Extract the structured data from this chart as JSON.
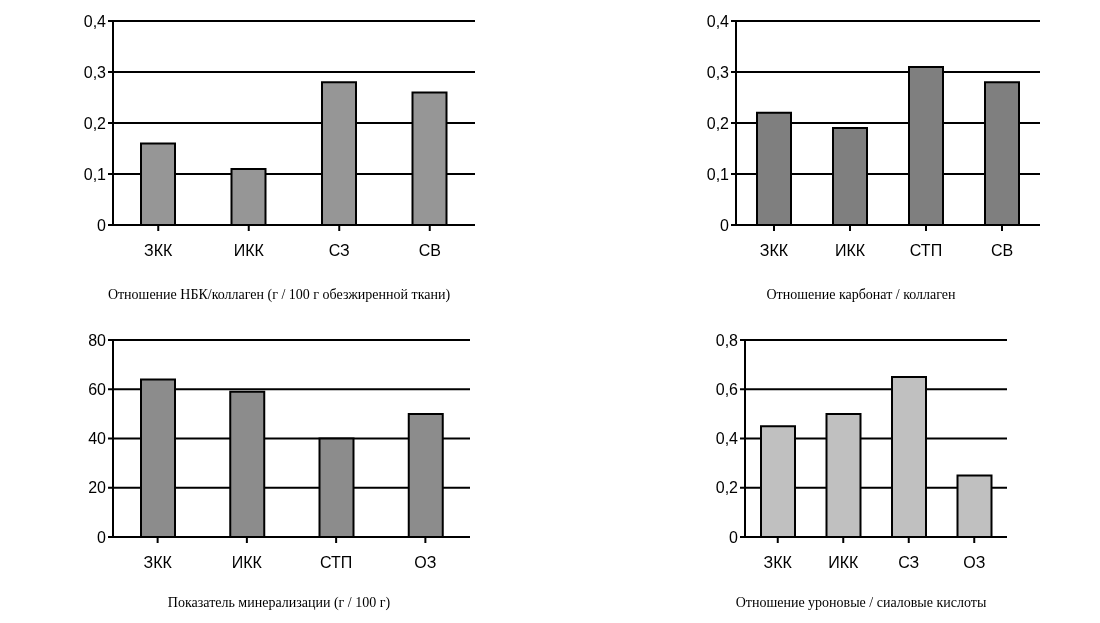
{
  "chart_data": [
    {
      "type": "bar",
      "title": "Отношение НБК/коллаген (г / 100 г обезжиренной ткани)",
      "categories": [
        "ЗКК",
        "ИКК",
        "СЗ",
        "СВ"
      ],
      "values": [
        0.16,
        0.11,
        0.28,
        0.26
      ],
      "color": "#969696",
      "ylim": [
        0,
        0.4
      ],
      "yticks": [
        0,
        {
          "value": 0.1,
          "label": "0,1"
        },
        {
          "value": 0.2,
          "label": "0,2"
        },
        {
          "value": 0.3,
          "label": "0,3"
        },
        {
          "value": 0.4,
          "label": "0,4"
        }
      ],
      "grid": "y"
    },
    {
      "type": "bar",
      "title": "Отношение карбонат / коллаген",
      "categories": [
        "ЗКК",
        "ИКК",
        "СТП",
        "СВ"
      ],
      "values": [
        0.22,
        0.19,
        0.31,
        0.28
      ],
      "color": "#7f7f7f",
      "ylim": [
        0,
        0.4
      ],
      "yticks": [
        0,
        {
          "value": 0.1,
          "label": "0,1"
        },
        {
          "value": 0.2,
          "label": "0,2"
        },
        {
          "value": 0.3,
          "label": "0,3"
        },
        {
          "value": 0.4,
          "label": "0,4"
        }
      ],
      "grid": "y"
    },
    {
      "type": "bar",
      "title": "Показатель минерализации (г / 100 г)",
      "categories": [
        "ЗКК",
        "ИКК",
        "СТП",
        "ОЗ"
      ],
      "values": [
        64,
        59,
        40,
        50
      ],
      "color": "#8c8c8c",
      "ylim": [
        0,
        80
      ],
      "yticks": [
        0,
        20,
        40,
        60,
        80
      ],
      "grid": "y"
    },
    {
      "type": "bar",
      "title": "Отношение уроновые / сиаловые кислоты",
      "categories": [
        "ЗКК",
        "ИКК",
        "СЗ",
        "ОЗ"
      ],
      "values": [
        0.45,
        0.5,
        0.65,
        0.25
      ],
      "color": "#c0c0c0",
      "ylim": [
        0,
        0.8
      ],
      "yticks": [
        0,
        {
          "value": 0.2,
          "label": "0,2"
        },
        {
          "value": 0.4,
          "label": "0,4"
        },
        {
          "value": 0.6,
          "label": "0,6"
        },
        {
          "value": 0.8,
          "label": "0,8"
        }
      ],
      "grid": "y"
    }
  ]
}
